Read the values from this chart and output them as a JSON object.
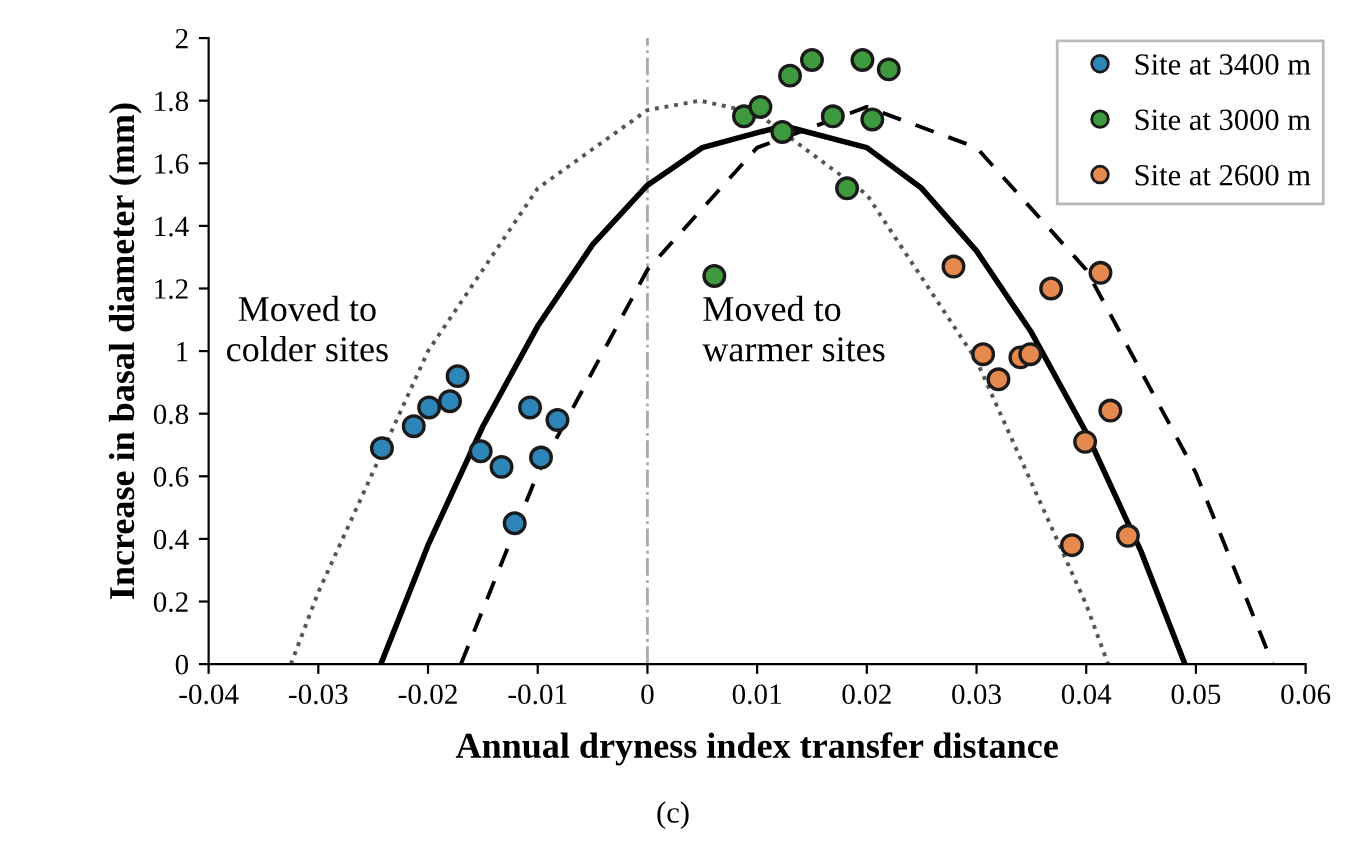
{
  "chart_data": {
    "type": "scatter",
    "xlabel": "Annual dryness index transfer distance",
    "ylabel": "Increase in basal diameter (mm)",
    "xlim": [
      -0.04,
      0.06
    ],
    "xticks": [
      -0.04,
      -0.03,
      -0.02,
      -0.01,
      0,
      0.01,
      0.02,
      0.03,
      0.04,
      0.05,
      0.06
    ],
    "ylim": [
      0,
      2
    ],
    "yticks": [
      0,
      0.2,
      0.4,
      0.6,
      0.8,
      1,
      1.2,
      1.4,
      1.6,
      1.8,
      2
    ],
    "grid": false,
    "legend": "top right",
    "marker": "circle",
    "annotations": [
      "Moved to\ncolder sites",
      "Moved to\nwarmer sites",
      "(c)"
    ],
    "ref_lines": [
      {
        "axis": "x",
        "value": 0,
        "color": "#aaaaaa",
        "line_style": "dashdot"
      }
    ],
    "series": [
      {
        "name": "Site at 3400 m",
        "color": "#2e86b8",
        "x": [
          -0.0242,
          -0.0213,
          -0.0199,
          -0.018,
          -0.0173,
          -0.0152,
          -0.0133,
          -0.0121,
          -0.0107,
          -0.0097,
          -0.0082
        ],
        "values": [
          0.69,
          0.76,
          0.82,
          0.84,
          0.92,
          0.68,
          0.63,
          0.45,
          0.82,
          0.66,
          0.78
        ]
      },
      {
        "name": "Site at 3000 m",
        "color": "#3f9a3f",
        "x": [
          0.0061,
          0.0088,
          0.0103,
          0.0123,
          0.013,
          0.015,
          0.0169,
          0.0182,
          0.0196,
          0.0205,
          0.022
        ],
        "values": [
          1.24,
          1.75,
          1.78,
          1.7,
          1.88,
          1.93,
          1.75,
          1.52,
          1.93,
          1.74,
          1.9
        ]
      },
      {
        "name": "Site at 2600 m",
        "color": "#e58a4e",
        "x": [
          0.0279,
          0.0306,
          0.032,
          0.034,
          0.0349,
          0.0368,
          0.0387,
          0.0399,
          0.0413,
          0.0422,
          0.0438
        ],
        "values": [
          1.27,
          0.99,
          0.91,
          0.98,
          0.99,
          1.2,
          0.38,
          0.71,
          1.25,
          0.81,
          0.41
        ]
      },
      {
        "type": "line",
        "color": "#000000",
        "line_style": "solid",
        "marker": "none",
        "x": [
          -0.0243,
          -0.02,
          -0.015,
          -0.01,
          -0.005,
          0,
          0.005,
          0.0124,
          0.02,
          0.025,
          0.03,
          0.035,
          0.04,
          0.045,
          0.049
        ],
        "values": [
          0,
          0.38,
          0.76,
          1.08,
          1.34,
          1.53,
          1.65,
          1.72,
          1.65,
          1.52,
          1.32,
          1.06,
          0.74,
          0.36,
          0
        ]
      },
      {
        "type": "line",
        "color": "#555555",
        "line_style": "dotted",
        "marker": "none",
        "x": [
          -0.0325,
          -0.03,
          -0.02,
          -0.01,
          0,
          0.0048,
          0.01,
          0.02,
          0.03,
          0.04,
          0.042
        ],
        "values": [
          0,
          0.23,
          1.0,
          1.52,
          1.77,
          1.8,
          1.76,
          1.5,
          0.97,
          0.19,
          0
        ]
      },
      {
        "type": "line",
        "color": "#000000",
        "line_style": "dashed",
        "marker": "none",
        "x": [
          -0.017,
          -0.01,
          0,
          0.01,
          0.02,
          0.03,
          0.04,
          0.05,
          0.057
        ],
        "values": [
          0,
          0.61,
          1.26,
          1.65,
          1.78,
          1.65,
          1.26,
          0.61,
          0
        ]
      }
    ]
  }
}
